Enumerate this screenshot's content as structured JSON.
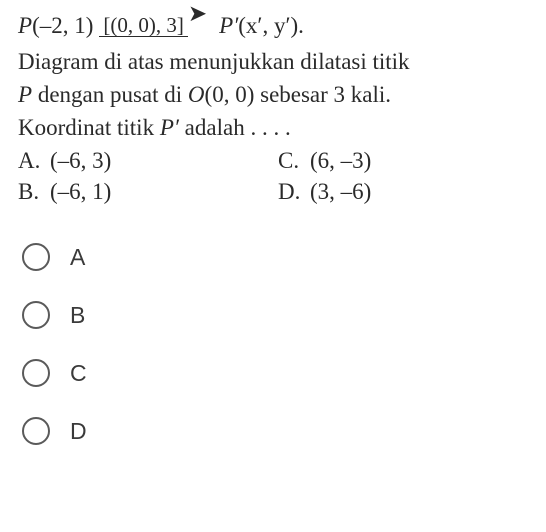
{
  "question": {
    "point_p": "P",
    "point_p_coords": "(–2, 1)",
    "transform_top": "[(0, 0), 3]",
    "point_p_prime": "P′",
    "point_p_prime_coords": "(x′, y′).",
    "description_line1": "Diagram di atas menunjukkan dilatasi titik",
    "description_line2_part1": "P",
    "description_line2_part2": " dengan pusat di ",
    "description_line2_part3": "O",
    "description_line2_part4": "(0, 0) sebesar 3 kali.",
    "description_line3_part1": "Koordinat titik ",
    "description_line3_part2": "P′",
    "description_line3_part3": " adalah . . . ."
  },
  "answers": {
    "a": {
      "label": "A.",
      "text": "(–6, 3)"
    },
    "b": {
      "label": "B.",
      "text": "(–6, 1)"
    },
    "c": {
      "label": "C.",
      "text": "(6, –3)"
    },
    "d": {
      "label": "D.",
      "text": "(3, –6)"
    }
  },
  "options": {
    "a": "A",
    "b": "B",
    "c": "C",
    "d": "D"
  },
  "colors": {
    "text": "#2a2a2a",
    "radio_border": "#5a5a5a",
    "background": "#ffffff"
  },
  "typography": {
    "question_fontsize": 23,
    "option_fontsize": 23,
    "question_font": "Times New Roman",
    "option_font": "Arial"
  }
}
